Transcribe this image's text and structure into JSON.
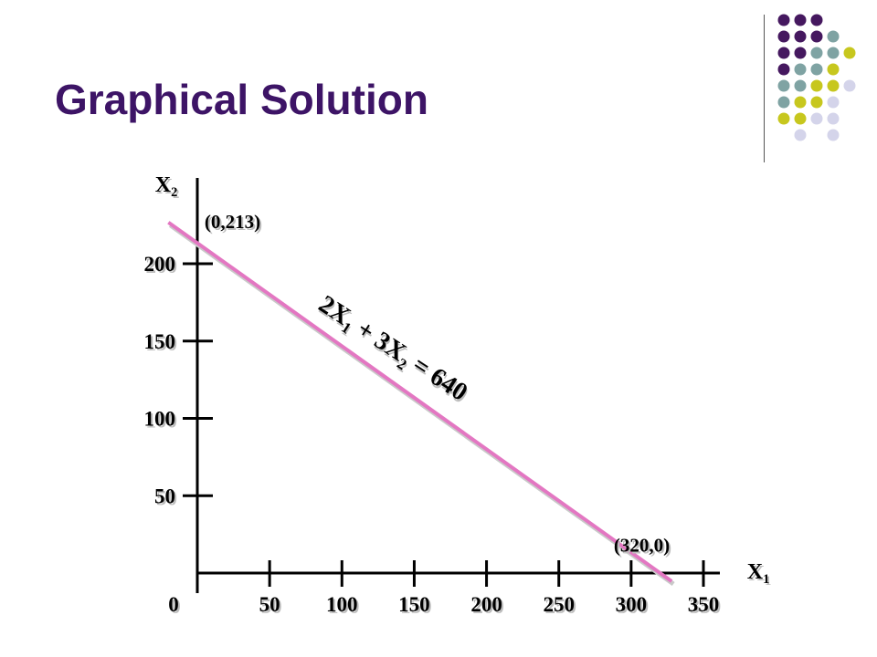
{
  "slide": {
    "title": "Graphical Solution"
  },
  "decoration": {
    "dot_colors": {
      "purple": "#45185f",
      "teal": "#7fa3a3",
      "olive": "#c7c71e",
      "lavender": "#d4d4ea"
    },
    "dot_rows": [
      [
        "purple",
        "purple",
        "purple",
        "",
        ""
      ],
      [
        "purple",
        "purple",
        "purple",
        "teal",
        ""
      ],
      [
        "purple",
        "purple",
        "teal",
        "teal",
        "olive"
      ],
      [
        "purple",
        "teal",
        "teal",
        "olive",
        ""
      ],
      [
        "teal",
        "teal",
        "olive",
        "olive",
        "lavender"
      ],
      [
        "teal",
        "olive",
        "olive",
        "lavender",
        ""
      ],
      [
        "olive",
        "olive",
        "lavender",
        "lavender",
        ""
      ],
      [
        "",
        "lavender",
        "",
        "lavender",
        ""
      ]
    ]
  },
  "chart_data": {
    "type": "line",
    "xlabel": "X1",
    "ylabel": "X2",
    "xlim": [
      0,
      350
    ],
    "ylim": [
      0,
      240
    ],
    "x_ticks": [
      0,
      50,
      100,
      150,
      200,
      250,
      300,
      350
    ],
    "y_ticks": [
      50,
      100,
      150,
      200
    ],
    "series": [
      {
        "x": [
          -20,
          328
        ],
        "y": [
          226.7,
          -5.3
        ],
        "color": "#e377c2"
      }
    ],
    "annotations": [
      {
        "text": "(0,213)",
        "x": 5,
        "y": 223
      },
      {
        "text": "(320,0)",
        "x": 288,
        "y": 14
      }
    ],
    "equation": {
      "text": "2X1 + 3X2 = 640"
    }
  }
}
